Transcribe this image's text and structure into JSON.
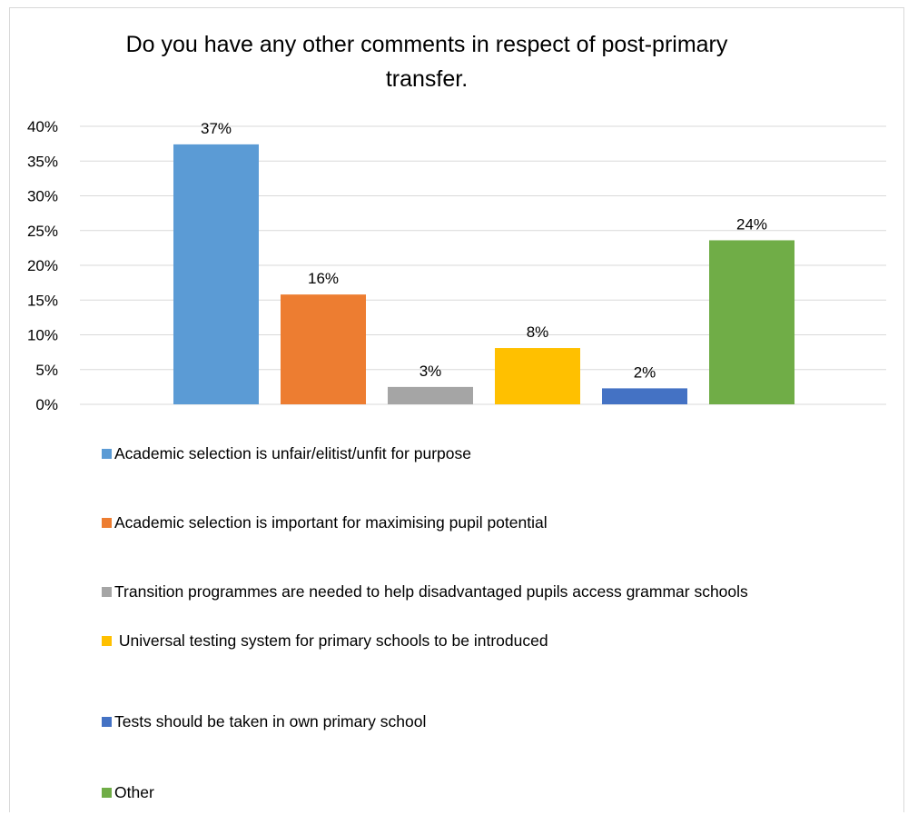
{
  "chart_data": {
    "type": "bar",
    "title": "Do you have any other comments in respect of post-primary transfer.",
    "xlabel": "",
    "ylabel": "",
    "ylim": [
      0,
      0.4
    ],
    "yticks": [
      "0%",
      "5%",
      "10%",
      "15%",
      "20%",
      "25%",
      "30%",
      "35%",
      "40%"
    ],
    "grid": true,
    "legend_position": "bottom",
    "categories": [
      "Academic selection is unfair/elitist/unfit for purpose",
      "Academic selection is important for maximising pupil potential",
      "Transition programmes are needed to help disadvantaged pupils access grammar schools",
      " Universal testing system for primary schools to be introduced",
      "Tests should be taken in own primary school",
      "Other"
    ],
    "values": [
      0.374,
      0.158,
      0.025,
      0.081,
      0.023,
      0.236
    ],
    "data_labels": [
      "37%",
      "16%",
      "3%",
      "8%",
      "2%",
      "24%"
    ],
    "colors": [
      "#5b9bd5",
      "#ed7d31",
      "#a5a5a5",
      "#ffc000",
      "#4472c4",
      "#70ad47"
    ]
  }
}
